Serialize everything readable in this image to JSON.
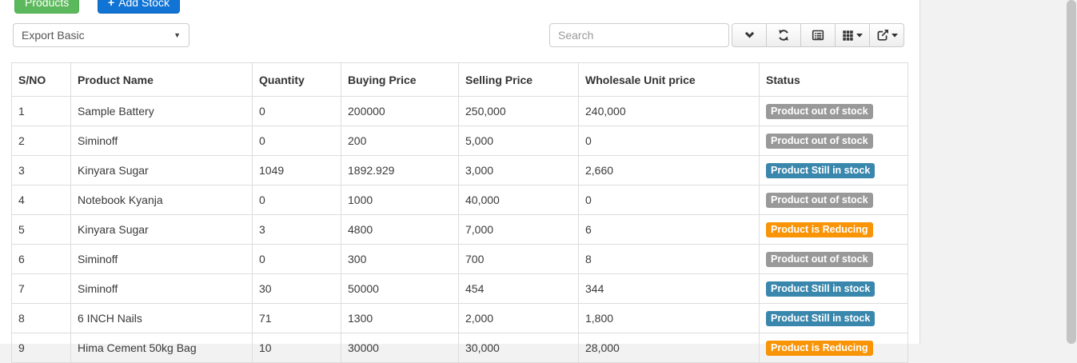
{
  "header": {
    "products_label": "Products",
    "add_stock_label": "Add Stock",
    "add_stock_plus": "+"
  },
  "controls": {
    "export_select_value": "Export Basic",
    "search_placeholder": "Search"
  },
  "icons": {
    "select_caret": "caret-down",
    "toolbar": [
      "chevron-down",
      "refresh",
      "toggle-detail-view",
      "columns-grid",
      "export-share"
    ],
    "caret": "caret-down"
  },
  "colors": {
    "products_button": "#5cb85c",
    "add_stock_button": "#1173d4",
    "badge_out_of_stock": "#999999",
    "badge_in_stock": "#3a87ad",
    "badge_reducing": "#f89406"
  },
  "table": {
    "columns": [
      "S/NO",
      "Product Name",
      "Quantity",
      "Buying Price",
      "Selling Price",
      "Wholesale Unit price",
      "Status"
    ],
    "rows": [
      {
        "sno": "1",
        "name": "Sample Battery",
        "quantity": "0",
        "buying_price": "200000",
        "selling_price": "250,000",
        "wholesale_price": "240,000",
        "status": "Product out of stock",
        "status_type": "out"
      },
      {
        "sno": "2",
        "name": "Siminoff",
        "quantity": "0",
        "buying_price": "200",
        "selling_price": "5,000",
        "wholesale_price": "0",
        "status": "Product out of stock",
        "status_type": "out"
      },
      {
        "sno": "3",
        "name": "Kinyara Sugar",
        "quantity": "1049",
        "buying_price": "1892.929",
        "selling_price": "3,000",
        "wholesale_price": "2,660",
        "status": "Product Still in stock",
        "status_type": "in"
      },
      {
        "sno": "4",
        "name": "Notebook Kyanja",
        "quantity": "0",
        "buying_price": "1000",
        "selling_price": "40,000",
        "wholesale_price": "0",
        "status": "Product out of stock",
        "status_type": "out"
      },
      {
        "sno": "5",
        "name": "Kinyara Sugar",
        "quantity": "3",
        "buying_price": "4800",
        "selling_price": "7,000",
        "wholesale_price": "6",
        "status": "Product is Reducing",
        "status_type": "reducing"
      },
      {
        "sno": "6",
        "name": "Siminoff",
        "quantity": "0",
        "buying_price": "300",
        "selling_price": "700",
        "wholesale_price": "8",
        "status": "Product out of stock",
        "status_type": "out"
      },
      {
        "sno": "7",
        "name": "Siminoff",
        "quantity": "30",
        "buying_price": "50000",
        "selling_price": "454",
        "wholesale_price": "344",
        "status": "Product Still in stock",
        "status_type": "in"
      },
      {
        "sno": "8",
        "name": "6 INCH Nails",
        "quantity": "71",
        "buying_price": "1300",
        "selling_price": "2,000",
        "wholesale_price": "1,800",
        "status": "Product Still in stock",
        "status_type": "in"
      },
      {
        "sno": "9",
        "name": "Hima Cement 50kg Bag",
        "quantity": "10",
        "buying_price": "30000",
        "selling_price": "30,000",
        "wholesale_price": "28,000",
        "status": "Product is Reducing",
        "status_type": "reducing"
      }
    ]
  }
}
